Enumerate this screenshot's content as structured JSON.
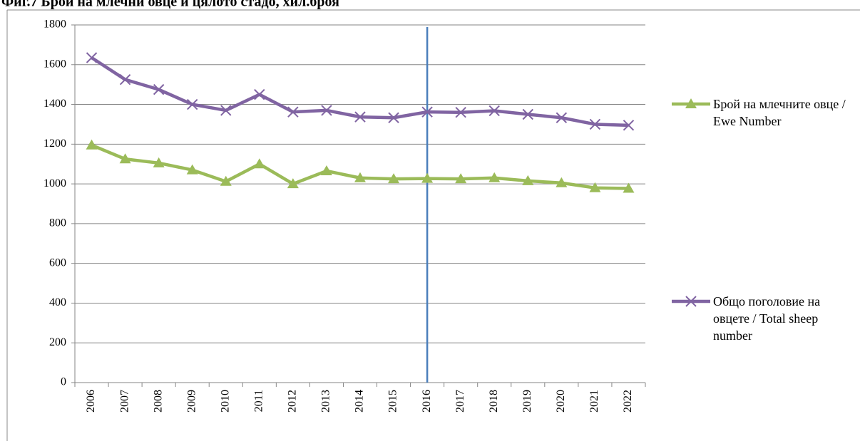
{
  "chart_data": {
    "type": "line",
    "title": "Фиг.7 Брой на млечни овце и цялото стадо, хил.броя",
    "categories": [
      "2006",
      "2007",
      "2008",
      "2009",
      "2010",
      "2011",
      "2012",
      "2013",
      "2014",
      "2015",
      "2016",
      "2017",
      "2018",
      "2019",
      "2020",
      "2021",
      "2022"
    ],
    "series": [
      {
        "name": "Брой на млечните овце / Ewe Number",
        "color": "#9bbb59",
        "marker": "triangle",
        "values": [
          1195,
          1125,
          1105,
          1070,
          1012,
          1100,
          1000,
          1065,
          1030,
          1025,
          1027,
          1025,
          1030,
          1015,
          1005,
          980,
          977
        ]
      },
      {
        "name": "Общо поголовие на овцете / Total sheep number",
        "color": "#8064a2",
        "marker": "x",
        "values": [
          1635,
          1525,
          1475,
          1400,
          1370,
          1450,
          1362,
          1370,
          1337,
          1333,
          1362,
          1360,
          1368,
          1350,
          1333,
          1300,
          1295
        ]
      }
    ],
    "ylim": [
      0,
      1800
    ],
    "yticks": [
      0,
      200,
      400,
      600,
      800,
      1000,
      1200,
      1400,
      1600,
      1800
    ],
    "grid": true,
    "legend": "right"
  }
}
